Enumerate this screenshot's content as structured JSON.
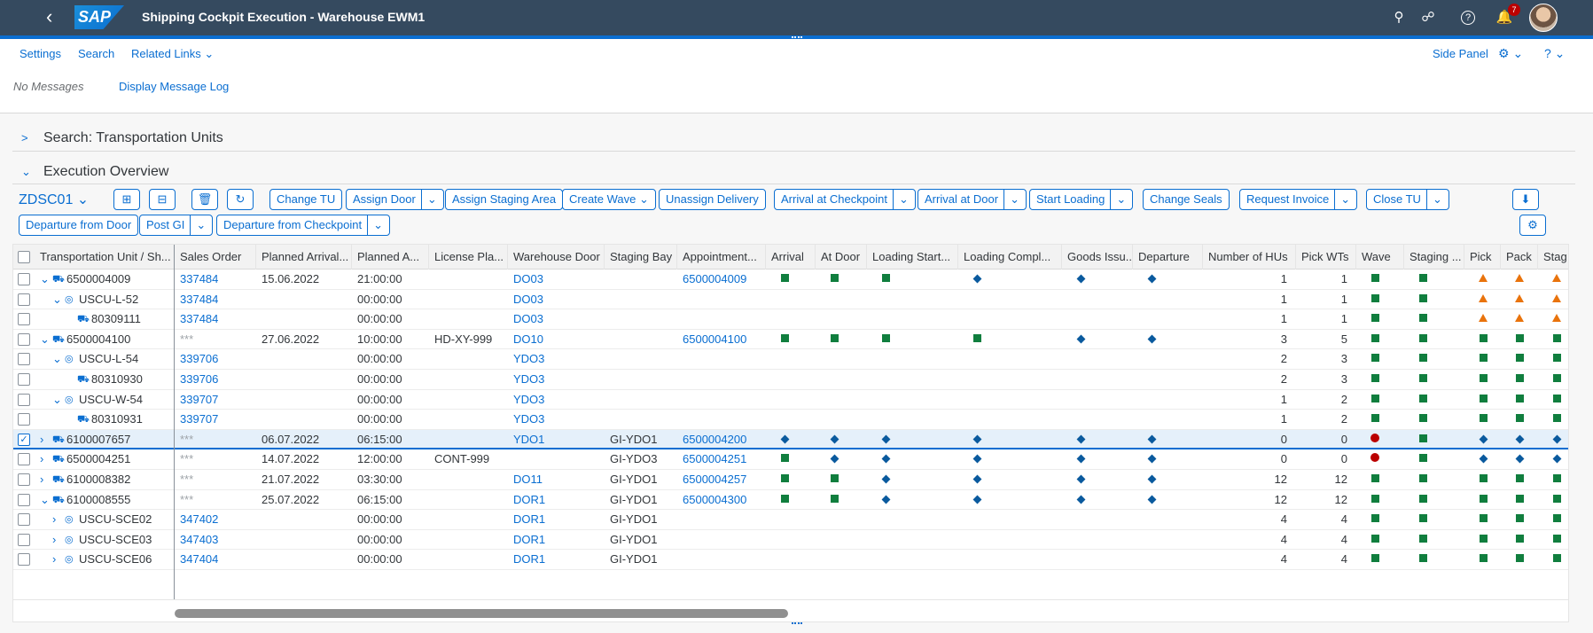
{
  "shell": {
    "title": "Shipping Cockpit Execution - Warehouse EWM1",
    "logo": "SAP",
    "notification_count": "7",
    "icons": [
      "back-icon",
      "search-icon",
      "binoculars-icon",
      "help-icon",
      "bell-icon"
    ]
  },
  "header": {
    "links": [
      "Settings",
      "Search",
      "Related Links"
    ],
    "side_panel": "Side Panel",
    "no_messages": "No Messages",
    "message_log": "Display Message Log"
  },
  "panels": {
    "search": "Search: Transportation Units",
    "execution": "Execution Overview"
  },
  "toolbar": {
    "variant": "ZDSC01",
    "row1": [
      "Change TU",
      "Assign Door",
      "Assign Staging Area",
      "Create Wave",
      "Unassign Delivery",
      "Arrival at Checkpoint",
      "Arrival at Door",
      "Start Loading",
      "Change Seals",
      "Request Invoice",
      "Close TU"
    ],
    "row2": [
      "Departure from Door",
      "Post GI",
      "Departure from Checkpoint"
    ]
  },
  "table": {
    "columns": [
      "Transportation Unit / Sh...",
      "Sales Order",
      "Planned Arrival...",
      "Planned A...",
      "License Pla...",
      "Warehouse Door",
      "Staging Bay",
      "Appointment...",
      "Arrival",
      "At Door",
      "Loading Start...",
      "Loading Compl...",
      "Goods Issu...",
      "Departure",
      "Number of HUs",
      "Pick WTs",
      "Wave",
      "Staging ...",
      "Pick",
      "Pack",
      "Stag"
    ],
    "rows": [
      {
        "id": "6500004009",
        "level": 0,
        "exp": "v",
        "kind": "truck",
        "so": "337484",
        "pdate": "15.06.2022",
        "ptime": "21:00:00",
        "lic": "",
        "door": "DO03",
        "bay": "",
        "appt": "6500004009",
        "st": [
          "s",
          "s",
          "s",
          "d",
          "d",
          "d"
        ],
        "hus": "1",
        "wts": "1",
        "st2": [
          "s",
          "s",
          "t",
          "t",
          "t"
        ],
        "sel": false
      },
      {
        "id": "USCU-L-52",
        "level": 1,
        "exp": "v",
        "kind": "person",
        "so": "337484",
        "pdate": "",
        "ptime": "00:00:00",
        "lic": "",
        "door": "DO03",
        "bay": "",
        "appt": "",
        "st": [
          "",
          "",
          "",
          "",
          "",
          ""
        ],
        "hus": "1",
        "wts": "1",
        "st2": [
          "s",
          "s",
          "t",
          "t",
          "t"
        ],
        "sel": false
      },
      {
        "id": "80309111",
        "level": 2,
        "exp": "",
        "kind": "del",
        "so": "337484",
        "pdate": "",
        "ptime": "00:00:00",
        "lic": "",
        "door": "DO03",
        "bay": "",
        "appt": "",
        "st": [
          "",
          "",
          "",
          "",
          "",
          ""
        ],
        "hus": "1",
        "wts": "1",
        "st2": [
          "s",
          "s",
          "t",
          "t",
          "t"
        ],
        "sel": false
      },
      {
        "id": "6500004100",
        "level": 0,
        "exp": "v",
        "kind": "truck",
        "so": "***",
        "pdate": "27.06.2022",
        "ptime": "10:00:00",
        "lic": "HD-XY-999",
        "door": "DO10",
        "bay": "",
        "appt": "6500004100",
        "st": [
          "s",
          "s",
          "s",
          "s",
          "d",
          "d"
        ],
        "hus": "3",
        "wts": "5",
        "st2": [
          "s",
          "s",
          "s",
          "s",
          "s"
        ],
        "sel": false
      },
      {
        "id": "USCU-L-54",
        "level": 1,
        "exp": "v",
        "kind": "person",
        "so": "339706",
        "pdate": "",
        "ptime": "00:00:00",
        "lic": "",
        "door": "YDO3",
        "bay": "",
        "appt": "",
        "st": [
          "",
          "",
          "",
          "",
          "",
          ""
        ],
        "hus": "2",
        "wts": "3",
        "st2": [
          "s",
          "s",
          "s",
          "s",
          "s"
        ],
        "sel": false
      },
      {
        "id": "80310930",
        "level": 2,
        "exp": "",
        "kind": "del",
        "so": "339706",
        "pdate": "",
        "ptime": "00:00:00",
        "lic": "",
        "door": "YDO3",
        "bay": "",
        "appt": "",
        "st": [
          "",
          "",
          "",
          "",
          "",
          ""
        ],
        "hus": "2",
        "wts": "3",
        "st2": [
          "s",
          "s",
          "s",
          "s",
          "s"
        ],
        "sel": false
      },
      {
        "id": "USCU-W-54",
        "level": 1,
        "exp": "v",
        "kind": "person",
        "so": "339707",
        "pdate": "",
        "ptime": "00:00:00",
        "lic": "",
        "door": "YDO3",
        "bay": "",
        "appt": "",
        "st": [
          "",
          "",
          "",
          "",
          "",
          ""
        ],
        "hus": "1",
        "wts": "2",
        "st2": [
          "s",
          "s",
          "s",
          "s",
          "s"
        ],
        "sel": false
      },
      {
        "id": "80310931",
        "level": 2,
        "exp": "",
        "kind": "del",
        "so": "339707",
        "pdate": "",
        "ptime": "00:00:00",
        "lic": "",
        "door": "YDO3",
        "bay": "",
        "appt": "",
        "st": [
          "",
          "",
          "",
          "",
          "",
          ""
        ],
        "hus": "1",
        "wts": "2",
        "st2": [
          "s",
          "s",
          "s",
          "s",
          "s"
        ],
        "sel": false
      },
      {
        "id": "6100007657",
        "level": 0,
        "exp": ">",
        "kind": "truck",
        "so": "***",
        "pdate": "06.07.2022",
        "ptime": "06:15:00",
        "lic": "",
        "door": "YDO1",
        "bay": "GI-YDO1",
        "appt": "6500004200",
        "st": [
          "d",
          "d",
          "d",
          "d",
          "d",
          "d"
        ],
        "hus": "0",
        "wts": "0",
        "st2": [
          "r",
          "s",
          "d",
          "d",
          "d"
        ],
        "sel": true
      },
      {
        "id": "6500004251",
        "level": 0,
        "exp": ">",
        "kind": "truck",
        "so": "***",
        "pdate": "14.07.2022",
        "ptime": "12:00:00",
        "lic": "CONT-999",
        "door": "",
        "bay": "GI-YDO3",
        "appt": "6500004251",
        "st": [
          "s",
          "d",
          "d",
          "d",
          "d",
          "d"
        ],
        "hus": "0",
        "wts": "0",
        "st2": [
          "r",
          "s",
          "d",
          "d",
          "d"
        ],
        "sel": false
      },
      {
        "id": "6100008382",
        "level": 0,
        "exp": ">",
        "kind": "truck",
        "so": "***",
        "pdate": "21.07.2022",
        "ptime": "03:30:00",
        "lic": "",
        "door": "DO11",
        "bay": "GI-YDO1",
        "appt": "6500004257",
        "st": [
          "s",
          "s",
          "d",
          "d",
          "d",
          "d"
        ],
        "hus": "12",
        "wts": "12",
        "st2": [
          "s",
          "s",
          "s",
          "s",
          "s"
        ],
        "sel": false
      },
      {
        "id": "6100008555",
        "level": 0,
        "exp": "v",
        "kind": "truck",
        "so": "***",
        "pdate": "25.07.2022",
        "ptime": "06:15:00",
        "lic": "",
        "door": "DOR1",
        "bay": "GI-YDO1",
        "appt": "6500004300",
        "st": [
          "s",
          "s",
          "d",
          "d",
          "d",
          "d"
        ],
        "hus": "12",
        "wts": "12",
        "st2": [
          "s",
          "s",
          "s",
          "s",
          "s"
        ],
        "sel": false
      },
      {
        "id": "USCU-SCE02",
        "level": 1,
        "exp": ">",
        "kind": "person",
        "so": "347402",
        "pdate": "",
        "ptime": "00:00:00",
        "lic": "",
        "door": "DOR1",
        "bay": "GI-YDO1",
        "appt": "",
        "st": [
          "",
          "",
          "",
          "",
          "",
          ""
        ],
        "hus": "4",
        "wts": "4",
        "st2": [
          "s",
          "s",
          "s",
          "s",
          "s"
        ],
        "sel": false
      },
      {
        "id": "USCU-SCE03",
        "level": 1,
        "exp": ">",
        "kind": "person",
        "so": "347403",
        "pdate": "",
        "ptime": "00:00:00",
        "lic": "",
        "door": "DOR1",
        "bay": "GI-YDO1",
        "appt": "",
        "st": [
          "",
          "",
          "",
          "",
          "",
          ""
        ],
        "hus": "4",
        "wts": "4",
        "st2": [
          "s",
          "s",
          "s",
          "s",
          "s"
        ],
        "sel": false
      },
      {
        "id": "USCU-SCE06",
        "level": 1,
        "exp": ">",
        "kind": "person",
        "so": "347404",
        "pdate": "",
        "ptime": "00:00:00",
        "lic": "",
        "door": "DOR1",
        "bay": "GI-YDO1",
        "appt": "",
        "st": [
          "",
          "",
          "",
          "",
          "",
          ""
        ],
        "hus": "4",
        "wts": "4",
        "st2": [
          "s",
          "s",
          "s",
          "s",
          "s"
        ],
        "sel": false
      }
    ]
  },
  "colors": {
    "shell": "#354a5f",
    "accent": "#0a6ed1",
    "ok": "#107e3e",
    "warn": "#e9730c",
    "error": "#bb0000",
    "diamond": "#0a5a9e"
  }
}
